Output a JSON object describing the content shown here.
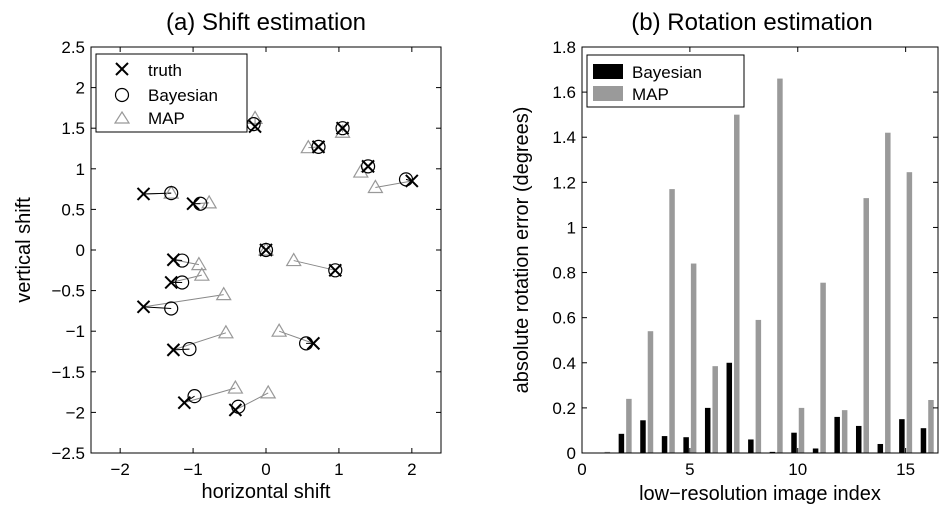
{
  "chart_data": [
    {
      "type": "scatter",
      "title": "(a) Shift estimation",
      "xlabel": "horizontal shift",
      "ylabel": "vertical shift",
      "xlim": [
        -2.4,
        2.4
      ],
      "ylim": [
        -2.5,
        2.5
      ],
      "xticks": [
        -2,
        -1,
        0,
        1,
        2
      ],
      "xtick_labels": [
        "−2",
        "−1",
        "0",
        "1",
        "2"
      ],
      "yticks": [
        -2.5,
        -2,
        -1.5,
        -1,
        -0.5,
        0,
        0.5,
        1,
        1.5,
        2,
        2.5
      ],
      "ytick_labels": [
        "−2.5",
        "−2",
        "−1.5",
        "−1",
        "−0.5",
        "0",
        "0.5",
        "1",
        "1.5",
        "2",
        "2.5"
      ],
      "grid": false,
      "legend_position": "top-left",
      "legend": [
        "truth",
        "Bayesian",
        "MAP"
      ],
      "colors": {
        "truth": "#000000",
        "bayesian": "#000000",
        "map": "#999999",
        "link": "#888888"
      },
      "points": [
        {
          "truth": [
            0.0,
            0.0
          ],
          "bayesian": [
            0.0,
            0.0
          ],
          "map": [
            0.0,
            0.0
          ]
        },
        {
          "truth": [
            1.05,
            1.5
          ],
          "bayesian": [
            1.05,
            1.5
          ],
          "map": [
            1.05,
            1.45
          ]
        },
        {
          "truth": [
            0.72,
            1.27
          ],
          "bayesian": [
            0.72,
            1.27
          ],
          "map": [
            0.58,
            1.26
          ]
        },
        {
          "truth": [
            -0.15,
            1.52
          ],
          "bayesian": [
            -0.17,
            1.55
          ],
          "map": [
            -0.15,
            1.62
          ]
        },
        {
          "truth": [
            1.4,
            1.03
          ],
          "bayesian": [
            1.4,
            1.03
          ],
          "map": [
            1.3,
            0.96
          ]
        },
        {
          "truth": [
            2.0,
            0.85
          ],
          "bayesian": [
            1.92,
            0.87
          ],
          "map": [
            1.5,
            0.77
          ]
        },
        {
          "truth": [
            -1.68,
            0.69
          ],
          "bayesian": [
            -1.3,
            0.7
          ],
          "map": [
            -1.3,
            0.7
          ]
        },
        {
          "truth": [
            -1.0,
            0.57
          ],
          "bayesian": [
            -0.9,
            0.57
          ],
          "map": [
            -0.78,
            0.58
          ]
        },
        {
          "truth": [
            0.95,
            -0.25
          ],
          "bayesian": [
            0.95,
            -0.25
          ],
          "map": [
            0.38,
            -0.13
          ]
        },
        {
          "truth": [
            -1.27,
            -0.12
          ],
          "bayesian": [
            -1.15,
            -0.13
          ],
          "map": [
            -0.92,
            -0.18
          ]
        },
        {
          "truth": [
            -1.3,
            -0.4
          ],
          "bayesian": [
            -1.15,
            -0.4
          ],
          "map": [
            -0.88,
            -0.31
          ]
        },
        {
          "truth": [
            -1.68,
            -0.7
          ],
          "bayesian": [
            -1.3,
            -0.72
          ],
          "map": [
            -0.58,
            -0.55
          ]
        },
        {
          "truth": [
            0.65,
            -1.15
          ],
          "bayesian": [
            0.55,
            -1.15
          ],
          "map": [
            0.18,
            -1.0
          ]
        },
        {
          "truth": [
            -1.27,
            -1.23
          ],
          "bayesian": [
            -1.05,
            -1.22
          ],
          "map": [
            -0.55,
            -1.02
          ]
        },
        {
          "truth": [
            -1.12,
            -1.88
          ],
          "bayesian": [
            -0.98,
            -1.8
          ],
          "map": [
            -0.42,
            -1.7
          ]
        },
        {
          "truth": [
            -0.42,
            -1.97
          ],
          "bayesian": [
            -0.38,
            -1.93
          ],
          "map": [
            0.03,
            -1.76
          ]
        }
      ]
    },
    {
      "type": "bar",
      "title": "(b) Rotation estimation",
      "xlabel": "low−resolution image index",
      "ylabel": "absolute rotation error (degrees)",
      "xlim": [
        0,
        16.5
      ],
      "ylim": [
        0,
        1.8
      ],
      "xticks": [
        0,
        5,
        10,
        15
      ],
      "xtick_labels": [
        "0",
        "5",
        "10",
        "15"
      ],
      "yticks": [
        0,
        0.2,
        0.4,
        0.6,
        0.8,
        1,
        1.2,
        1.4,
        1.6,
        1.8
      ],
      "ytick_labels": [
        "0",
        "0.2",
        "0.4",
        "0.6",
        "0.8",
        "1",
        "1.2",
        "1.4",
        "1.6",
        "1.8"
      ],
      "grid": false,
      "legend_position": "top-left",
      "categories": [
        1,
        2,
        3,
        4,
        5,
        6,
        7,
        8,
        9,
        10,
        11,
        12,
        13,
        14,
        15,
        16
      ],
      "series": [
        {
          "name": "Bayesian",
          "color": "#000000",
          "values": [
            0.0,
            0.085,
            0.145,
            0.075,
            0.07,
            0.2,
            0.4,
            0.06,
            0.005,
            0.09,
            0.02,
            0.16,
            0.12,
            0.04,
            0.15,
            0.11
          ]
        },
        {
          "name": "MAP",
          "color": "#9a9a9a",
          "values": [
            0.005,
            0.24,
            0.54,
            1.17,
            0.84,
            0.385,
            1.5,
            0.59,
            1.66,
            0.2,
            0.755,
            0.19,
            1.13,
            1.42,
            1.245,
            0.235
          ]
        }
      ]
    }
  ]
}
